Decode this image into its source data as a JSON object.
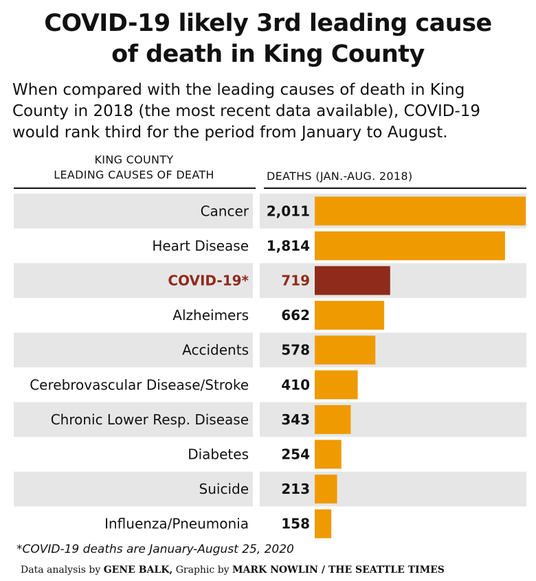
{
  "header": {
    "title_line1": "COVID-19 likely 3rd leading cause",
    "title_line2": "of death in King County",
    "subtitle_line1": "When compared with the leading causes of death in King",
    "subtitle_line2": "County in 2018 (the most recent data available), COVID-19",
    "subtitle_line3": "would rank third for the period from January to August."
  },
  "columns": {
    "left_line1": "KING COUNTY",
    "left_line2": "LEADING CAUSES OF DEATH",
    "right": "DEATHS (JAN.-AUG. 2018)"
  },
  "chart_data": {
    "type": "bar",
    "orientation": "horizontal",
    "categories": [
      "Cancer",
      "Heart Disease",
      "COVID-19*",
      "Alzheimers",
      "Accidents",
      "Cerebrovascular Disease/Stroke",
      "Chronic Lower Resp. Disease",
      "Diabetes",
      "Suicide",
      "Influenza/Pneumonia"
    ],
    "values": [
      2011,
      1814,
      719,
      662,
      578,
      410,
      343,
      254,
      213,
      158
    ],
    "value_labels": [
      "2,011",
      "1,814",
      "719",
      "662",
      "578",
      "410",
      "343",
      "254",
      "213",
      "158"
    ],
    "highlight_index": 2,
    "xlim": [
      0,
      2011
    ],
    "grid": false,
    "legend": "none"
  },
  "colors": {
    "bar": "#ef9a00",
    "highlight_bar": "#8f2b1b",
    "highlight_text": "#8f2b1b",
    "stripe": "#e6e6e6",
    "text": "#111111"
  },
  "footer": {
    "footnote": "*COVID-19 deaths are January-August 25, 2020",
    "credit_pre1": "Data analysis by ",
    "credit_name1": "GENE BALK,",
    "credit_pre2": " Graphic by ",
    "credit_name2": "MARK NOWLIN / THE SEATTLE TIMES"
  }
}
